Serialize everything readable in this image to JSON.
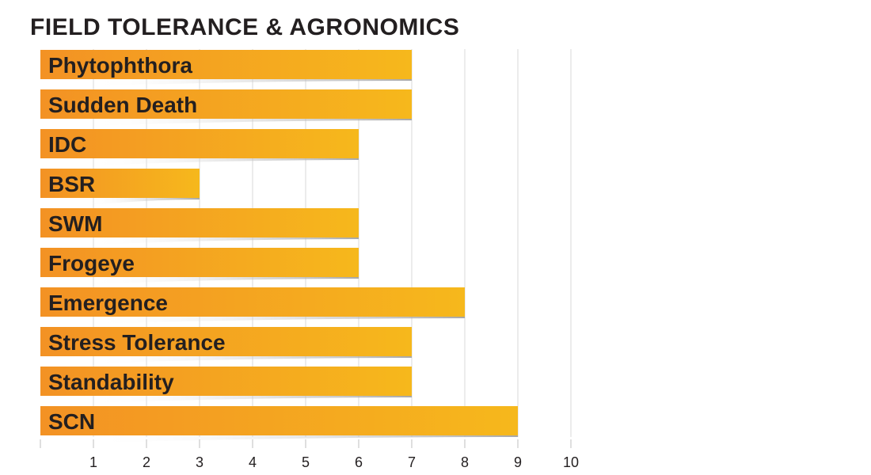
{
  "title": "FIELD TOLERANCE & AGRONOMICS",
  "chart_data": {
    "type": "bar",
    "orientation": "horizontal",
    "title": "FIELD TOLERANCE & AGRONOMICS",
    "categories": [
      "Phytophthora",
      "Sudden Death",
      "IDC",
      "BSR",
      "SWM",
      "Frogeye",
      "Emergence",
      "Stress Tolerance",
      "Standability",
      "SCN"
    ],
    "values": [
      7,
      7,
      6,
      3,
      6,
      6,
      8,
      7,
      7,
      9
    ],
    "xlim": [
      0,
      10
    ],
    "xticks": [
      "1",
      "2",
      "3",
      "4",
      "5",
      "6",
      "7",
      "8",
      "9",
      "10"
    ],
    "grid": true,
    "colors": {
      "bar_start": "#f39224",
      "bar_end": "#f6b81c",
      "shadow": "#c8c8c8",
      "grid": "#d9d9d9",
      "text": "#231f20"
    }
  }
}
